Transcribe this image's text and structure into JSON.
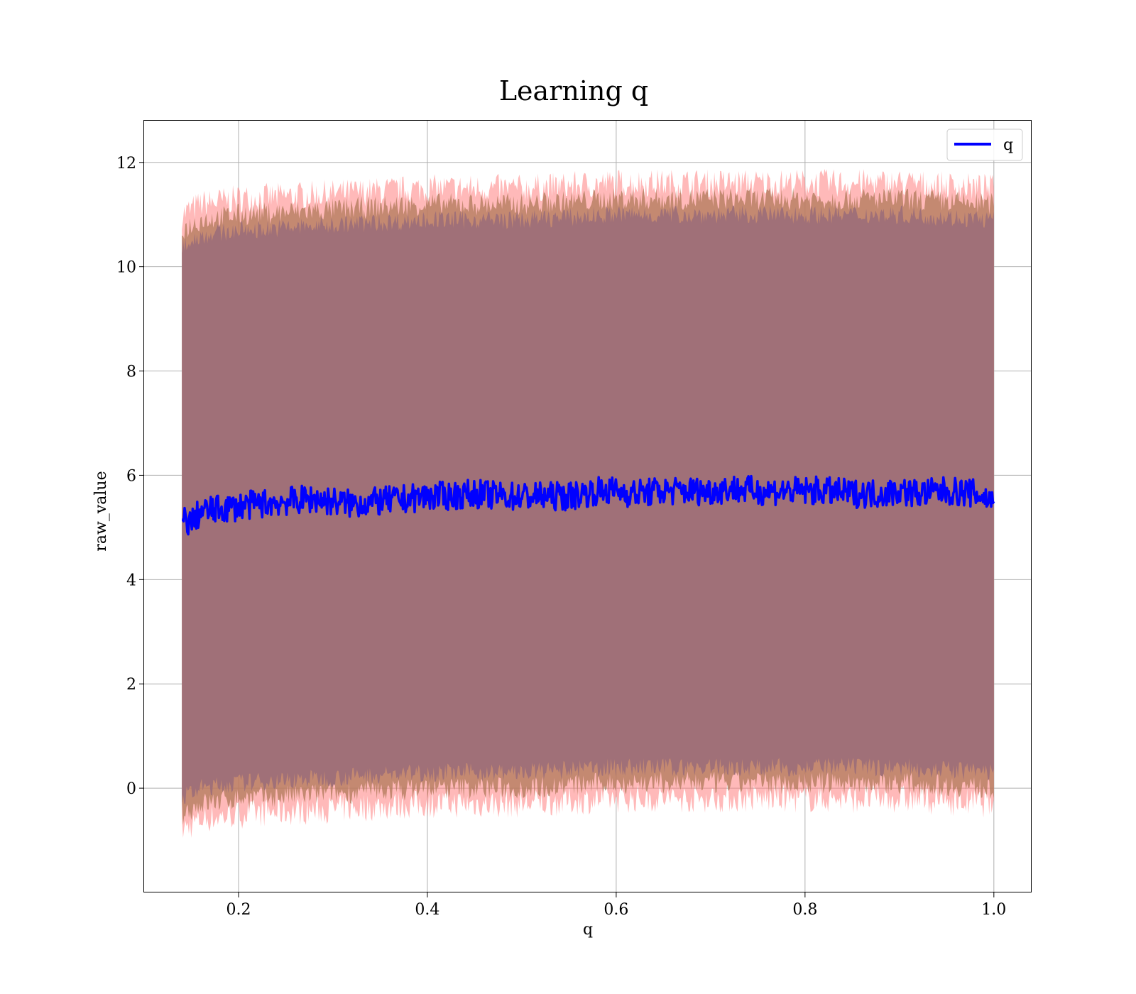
{
  "chart_data": {
    "type": "line",
    "title": "Learning q",
    "xlabel": "q",
    "ylabel": "raw_value",
    "xlim": [
      0.1,
      1.04
    ],
    "ylim": [
      -2.0,
      12.8
    ],
    "xticks": [
      0.2,
      0.4,
      0.6,
      0.8,
      1.0
    ],
    "xtick_labels": [
      "0.2",
      "0.4",
      "0.6",
      "0.8",
      "1.0"
    ],
    "yticks": [
      0,
      2,
      4,
      6,
      8,
      10,
      12
    ],
    "ytick_labels": [
      "0",
      "2",
      "4",
      "6",
      "8",
      "10",
      "12"
    ],
    "grid": true,
    "legend_position": "top-right",
    "colors": {
      "line": "#0000ff",
      "band_outer": "#ff7f7f",
      "band_mid": "#b07a5a",
      "band_inner": "#a07078",
      "grid": "#b0b0b0"
    },
    "series": [
      {
        "name": "q",
        "x": [
          0.14,
          0.15,
          0.16,
          0.18,
          0.2,
          0.22,
          0.25,
          0.28,
          0.3,
          0.32,
          0.35,
          0.38,
          0.4,
          0.42,
          0.45,
          0.48,
          0.5,
          0.52,
          0.55,
          0.58,
          0.6,
          0.62,
          0.65,
          0.68,
          0.7,
          0.72,
          0.75,
          0.78,
          0.8,
          0.82,
          0.85,
          0.88,
          0.9,
          0.92,
          0.95,
          0.98,
          1.0
        ],
        "values": [
          5.15,
          5.1,
          5.3,
          5.35,
          5.4,
          5.45,
          5.5,
          5.55,
          5.5,
          5.45,
          5.5,
          5.55,
          5.6,
          5.6,
          5.65,
          5.6,
          5.6,
          5.6,
          5.6,
          5.7,
          5.7,
          5.65,
          5.7,
          5.7,
          5.7,
          5.75,
          5.7,
          5.7,
          5.7,
          5.7,
          5.65,
          5.65,
          5.7,
          5.65,
          5.7,
          5.65,
          5.5
        ]
      }
    ],
    "bands": [
      {
        "x": [
          0.14,
          0.16,
          0.2,
          0.3,
          0.4,
          0.5,
          0.6,
          0.7,
          0.8,
          0.9,
          1.0
        ],
        "lower": [
          -0.8,
          -0.6,
          -0.5,
          -0.4,
          -0.3,
          -0.3,
          -0.2,
          -0.2,
          -0.2,
          -0.2,
          -0.3
        ],
        "upper": [
          11.0,
          11.2,
          11.3,
          11.4,
          11.5,
          11.5,
          11.6,
          11.6,
          11.6,
          11.6,
          11.5
        ]
      },
      {
        "x": [
          0.14,
          0.16,
          0.2,
          0.3,
          0.4,
          0.5,
          0.6,
          0.7,
          0.8,
          0.9,
          1.0
        ],
        "lower": [
          -0.5,
          -0.3,
          -0.2,
          -0.1,
          0.0,
          0.0,
          0.1,
          0.1,
          0.1,
          0.1,
          0.0
        ],
        "upper": [
          10.7,
          10.9,
          11.0,
          11.1,
          11.2,
          11.2,
          11.3,
          11.3,
          11.3,
          11.3,
          11.2
        ]
      },
      {
        "x": [
          0.14,
          0.16,
          0.2,
          0.3,
          0.4,
          0.5,
          0.6,
          0.7,
          0.8,
          0.9,
          1.0
        ],
        "lower": [
          -0.2,
          0.0,
          0.1,
          0.2,
          0.3,
          0.3,
          0.4,
          0.4,
          0.4,
          0.4,
          0.3
        ],
        "upper": [
          10.4,
          10.6,
          10.7,
          10.8,
          10.9,
          10.9,
          11.0,
          11.0,
          11.0,
          11.0,
          10.9
        ]
      }
    ]
  }
}
